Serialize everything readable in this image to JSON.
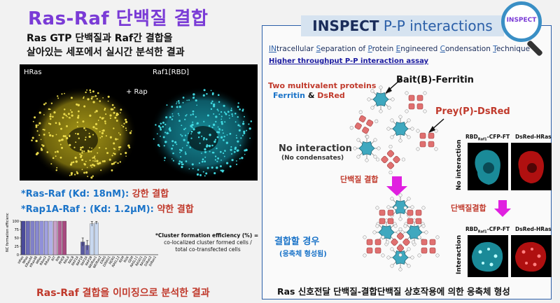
{
  "left": {
    "title": "Ras-Raf 단백질 결합",
    "subtitle_line1": "Ras GTP 단백질과 Raf간 결합을",
    "subtitle_line2": "살아있는 세포에서 실시간 분석한 결과",
    "micro_labels": {
      "left": "HRas",
      "right": "Raf1[RBD]",
      "treatment": "+ Rap"
    },
    "affinity1_prefix": "*Ras-Raf (Kd: 18nM):",
    "affinity1_result": "강한 결합",
    "affinity2_prefix": "*Rap1A-Raf : (Kd: 1.2μM):",
    "affinity2_result": "약한 결합",
    "cfe_note_line1": "*Cluster formation efficiency (%) =",
    "cfe_note_line2": "co-localized cluster formed cells /",
    "cfe_note_line3": "total co-transfected cells",
    "caption": "Ras-Raf 결합을 이미징으로 분석한 결과"
  },
  "chart_data": {
    "type": "bar",
    "ylabel": "NC formation efficiency (%)",
    "yticks": [
      0,
      25,
      50,
      75,
      100
    ],
    "ylim": [
      0,
      100
    ],
    "categories": [
      "HRas",
      "NRas",
      "KRas4A",
      "KRas4B",
      "MRas",
      "RRas2",
      "RRas3",
      "RIT",
      "RIN",
      "RHEB",
      "RALA",
      "RALB",
      "RAP1A",
      "RAP1B",
      "RAP2A",
      "RAP2B",
      "NKIRas1",
      "NKIRas2",
      "ERAS",
      "DIRAS1",
      "RERG",
      "RASL12",
      "REM",
      "RGK",
      "GEM",
      "RASL11",
      "RASD1",
      "RASD2",
      "DiRas2",
      "DiRas1"
    ],
    "values": [
      100,
      100,
      100,
      100,
      100,
      100,
      100,
      100,
      100,
      100,
      0,
      0,
      0,
      38,
      28,
      92,
      95,
      0,
      0,
      0,
      0,
      0,
      0,
      0,
      0,
      0,
      0,
      0,
      0,
      0
    ],
    "errors": [
      0,
      0,
      0,
      0,
      0,
      0,
      0,
      0,
      0,
      0,
      0,
      0,
      0,
      12,
      14,
      7,
      4,
      0,
      0,
      0,
      0,
      0,
      0,
      0,
      0,
      0,
      0,
      0,
      0,
      0
    ],
    "colors": [
      "#4a4a9a",
      "#6a6ab8",
      "#8080c8",
      "#8888d0",
      "#9090d8",
      "#a0a0e0",
      "#b0b0e8",
      "#c8a0c8",
      "#b05a90",
      "#a84a80",
      "#dddddd",
      "#dddddd",
      "#dddddd",
      "#5a5aa0",
      "#7070b8",
      "#c8d8f0",
      "#c8d8f0",
      "#dddddd",
      "#dddddd",
      "#dddddd",
      "#dddddd",
      "#dddddd",
      "#dddddd",
      "#dddddd",
      "#dddddd",
      "#dddddd",
      "#dddddd",
      "#dddddd",
      "#dddddd",
      "#dddddd"
    ]
  },
  "right": {
    "inspect_title_bold": "INSPECT",
    "inspect_title_rest": " P-P interactions",
    "lens_label": "INSPECT",
    "acronym_parts": [
      "IN",
      "tracellular ",
      "S",
      "eparation of ",
      "P",
      "rotein ",
      "E",
      "ngineered ",
      "C",
      "ondensation ",
      "T",
      "echnique"
    ],
    "assay": "Higher throughput P-P interaction assay",
    "two_proteins": "Two multivalent proteins",
    "ferritin": "Ferritin",
    "amp": "&",
    "dsred": "DsRed",
    "bait": "Bait(B)-Ferritin",
    "prey": "Prey(P)-DsRed",
    "no_interaction": "No interaction",
    "no_condensates": "(No condensates)",
    "binding1": "단백질 결합",
    "binding2": "단백질결합",
    "binding_case": "결합할 경우",
    "condensate_formed": "(응축체 형성됨)",
    "img_label_left": "RBD",
    "img_label_left_sub": "Raf1",
    "img_label_left_suffix": "-CFP-FT",
    "img_label_right": "DsRed-HRas",
    "row_label_top": "No interaction",
    "row_label_bottom": "Interaction",
    "caption": "Ras 신호전달 단백질-결합단백질 상호작용에 의한 응축체 형성"
  },
  "colors": {
    "title_purple": "#7a3bd6",
    "accent_red": "#c0392b",
    "accent_blue": "#1a73c8",
    "panel_border": "#2b5fa8",
    "yellow_signal": "#e8d84a",
    "cyan_signal": "#40d8e0",
    "red_signal": "#e02020",
    "arrow_magenta": "#e020e0"
  }
}
